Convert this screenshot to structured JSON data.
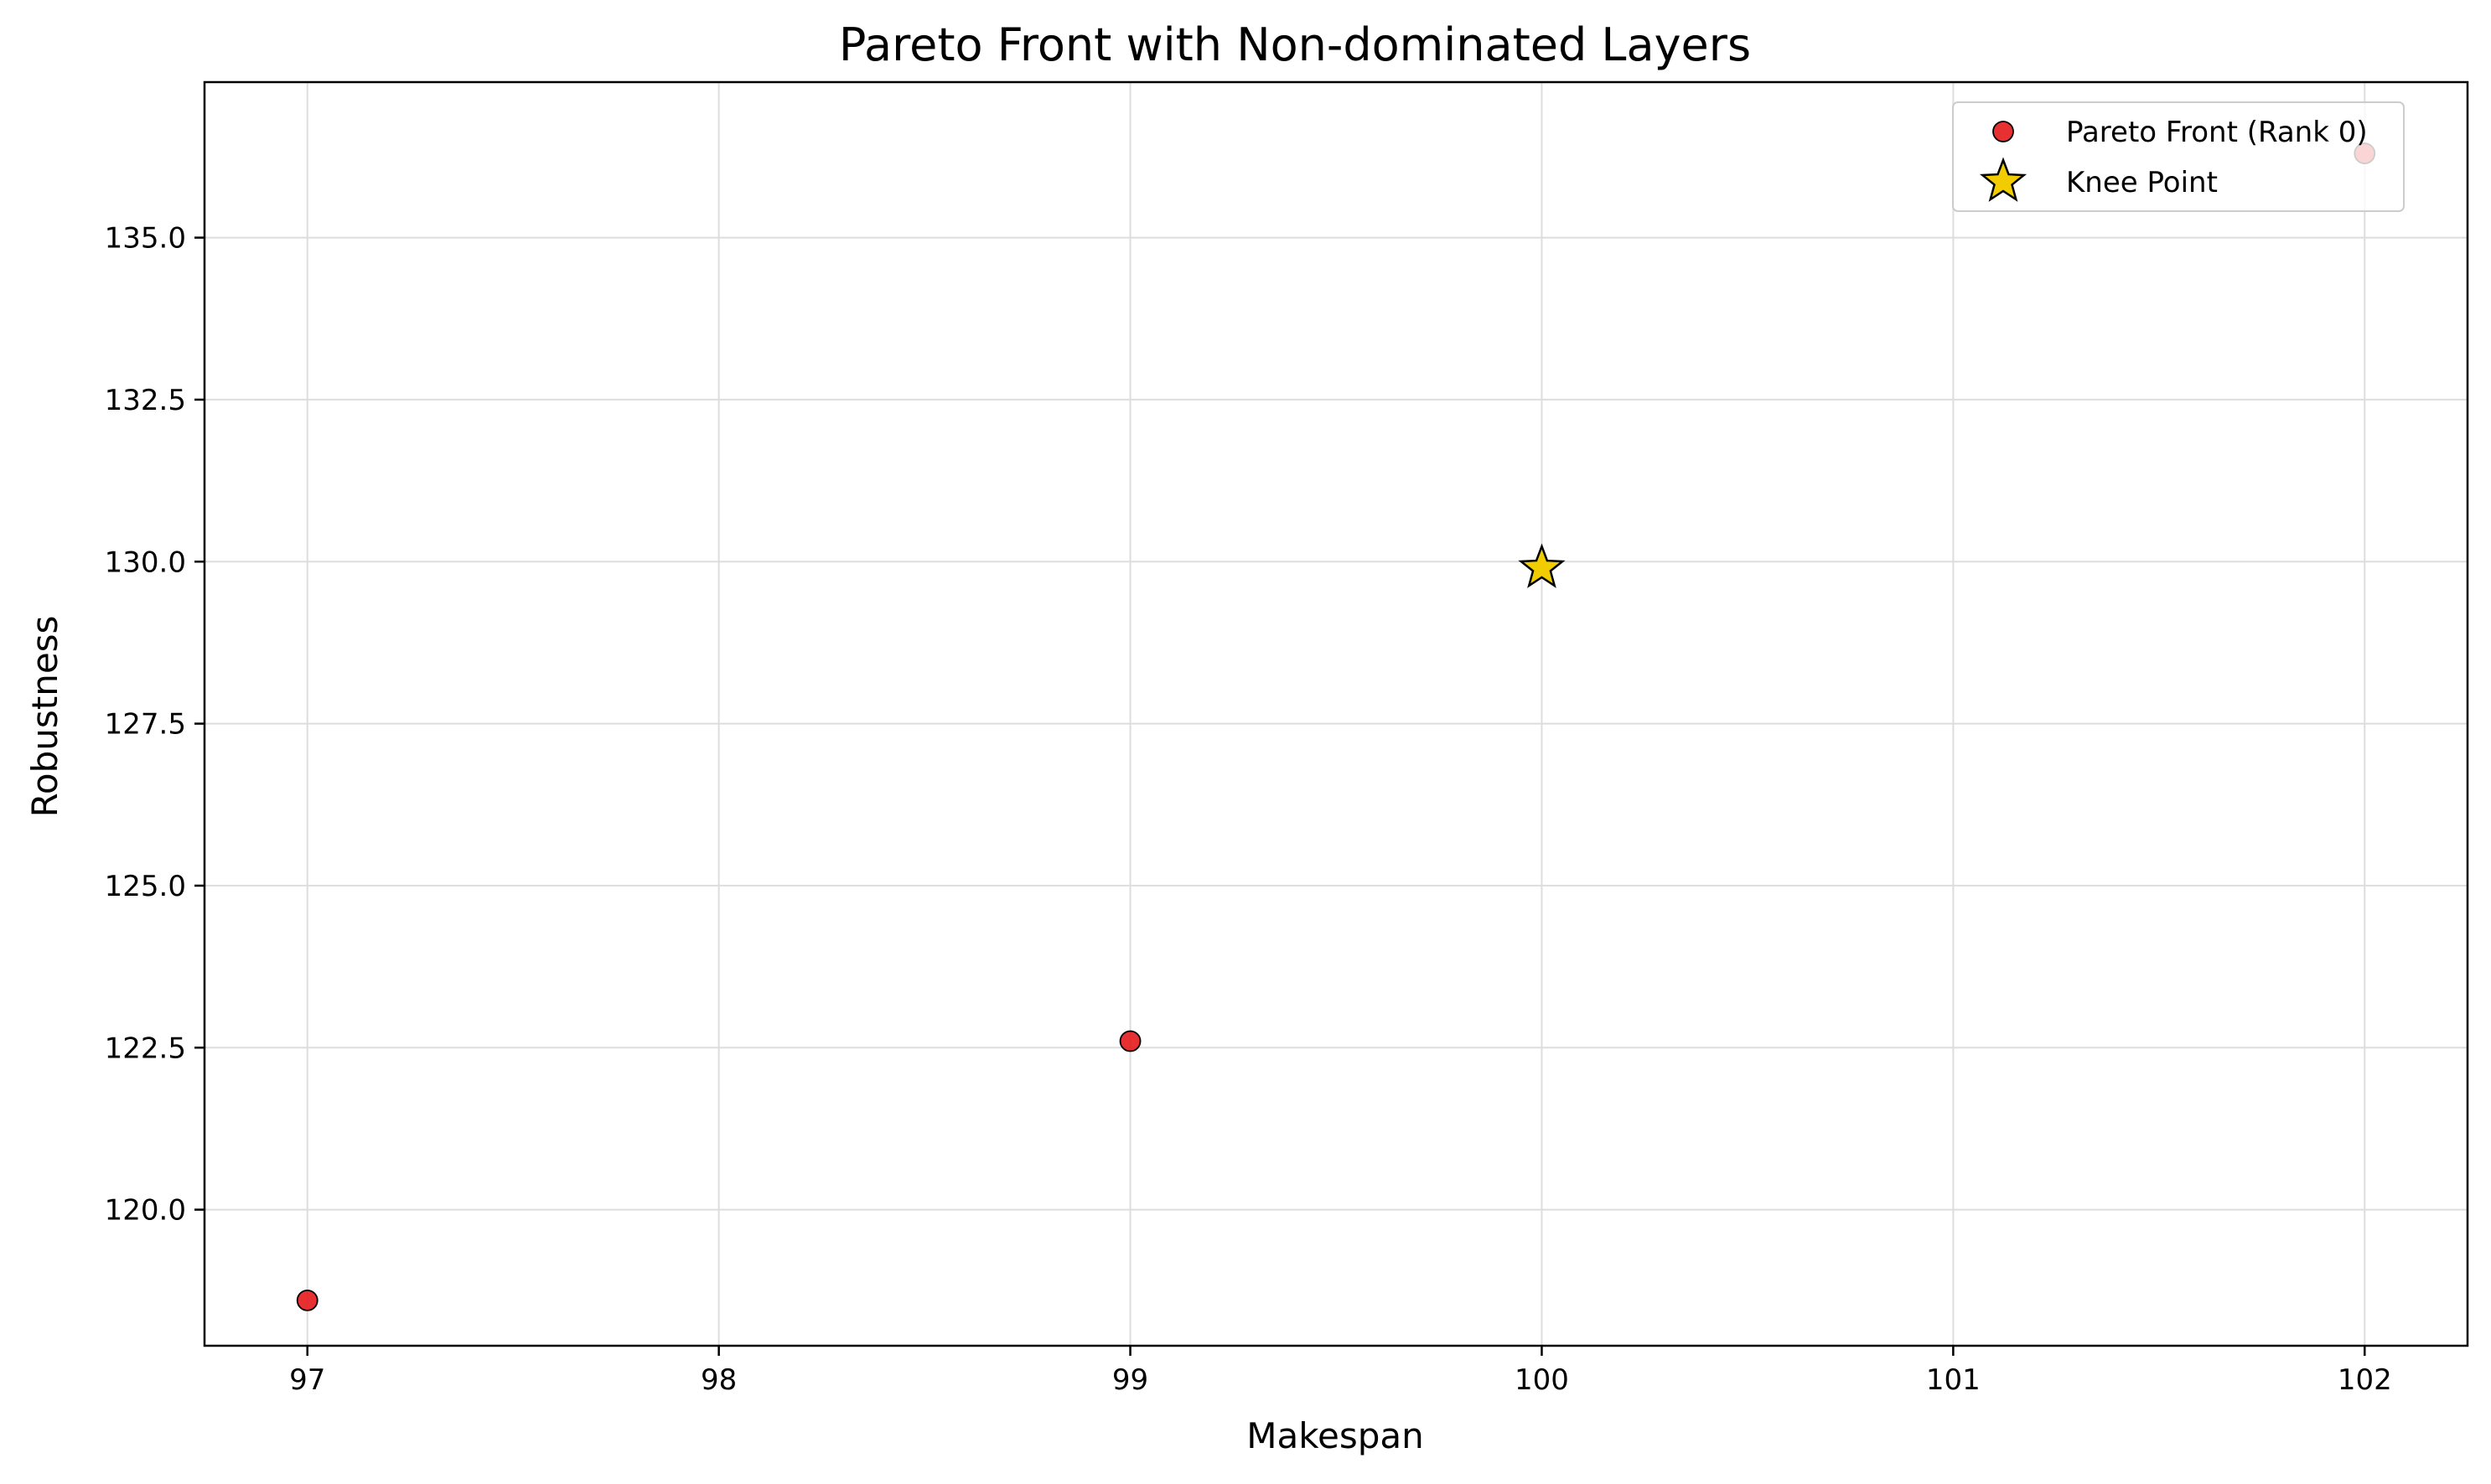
{
  "chart_data": {
    "type": "scatter",
    "title": "Pareto Front with Non-dominated Layers",
    "xlabel": "Makespan",
    "ylabel": "Robustness",
    "xlim": [
      96.75,
      102.25
    ],
    "ylim": [
      117.9,
      137.4
    ],
    "xticks": [
      97,
      98,
      99,
      100,
      101,
      102
    ],
    "yticks": [
      120.0,
      122.5,
      125.0,
      127.5,
      130.0,
      132.5,
      135.0
    ],
    "grid": true,
    "legend_position": "top-right",
    "series": [
      {
        "name": "Pareto Front (Rank 0)",
        "marker": "circle",
        "color": "#e31a1c",
        "points": [
          {
            "x": 97,
            "y": 118.6
          },
          {
            "x": 99,
            "y": 122.6
          },
          {
            "x": 102,
            "y": 136.3
          }
        ]
      },
      {
        "name": "Knee Point",
        "marker": "star",
        "color": "#f0cc00",
        "points": [
          {
            "x": 100,
            "y": 129.9
          }
        ]
      }
    ]
  }
}
